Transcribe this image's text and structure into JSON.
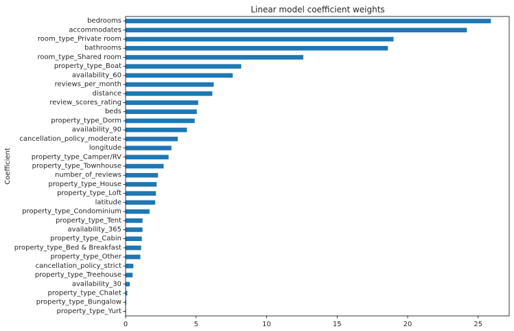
{
  "chart_data": {
    "type": "bar",
    "orientation": "horizontal",
    "title": "Linear model coefficient weights",
    "xlabel": "",
    "ylabel": "Coefficient",
    "xlim": [
      0,
      27.2
    ],
    "xticks": [
      0,
      5,
      10,
      15,
      20,
      25
    ],
    "grid": false,
    "bar_color": "#1f77b4",
    "categories": [
      "bedrooms",
      "accommodates",
      "room_type_Private room",
      "bathrooms",
      "room_type_Shared room",
      "property_type_Boat",
      "availability_60",
      "reviews_per_month",
      "distance",
      "review_scores_rating",
      "beds",
      "property_type_Dorm",
      "availability_90",
      "cancellation_policy_moderate",
      "longitude",
      "property_type_Camper/RV",
      "property_type_Townhouse",
      "number_of_reviews",
      "property_type_House",
      "property_type_Loft",
      "latitude",
      "property_type_Condominium",
      "property_type_Tent",
      "availability_365",
      "property_type_Cabin",
      "property_type_Bed & Breakfast",
      "property_type_Other",
      "cancellation_policy_strict",
      "property_type_Treehouse",
      "availability_30",
      "property_type_Chalet",
      "property_type_Bungalow",
      "property_type_Yurt"
    ],
    "values": [
      25.9,
      24.2,
      19.0,
      18.6,
      12.6,
      8.2,
      7.6,
      6.25,
      6.15,
      5.15,
      5.05,
      4.9,
      4.35,
      3.7,
      3.25,
      3.05,
      2.7,
      2.3,
      2.2,
      2.15,
      2.1,
      1.7,
      1.2,
      1.2,
      1.15,
      1.1,
      1.05,
      0.55,
      0.5,
      0.3,
      0.12,
      0.05,
      0.03
    ]
  }
}
